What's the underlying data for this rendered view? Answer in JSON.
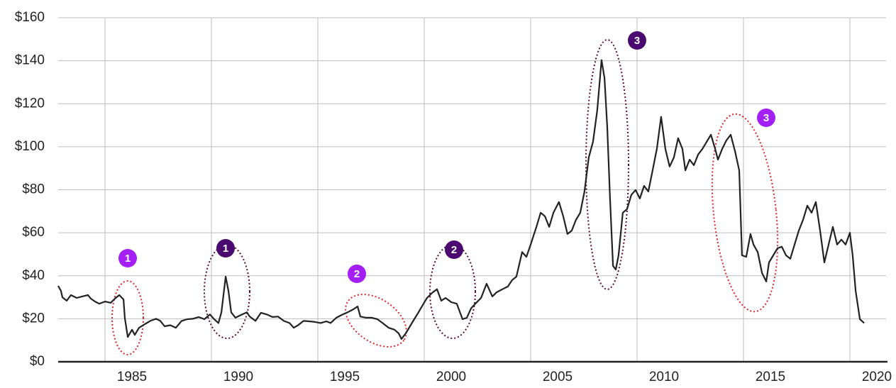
{
  "chart_data": {
    "type": "line",
    "xlim": [
      1982.8,
      2021.7
    ],
    "xticks": [
      1985,
      1990,
      1995,
      2000,
      2005,
      2010,
      2015,
      2020
    ],
    "ylim": [
      0,
      160
    ],
    "yticks": [
      {
        "value": 0,
        "label": "$0"
      },
      {
        "value": 20,
        "label": "$20"
      },
      {
        "value": 40,
        "label": "$40"
      },
      {
        "value": 60,
        "label": "$60"
      },
      {
        "value": 80,
        "label": "$80"
      },
      {
        "value": 100,
        "label": "$100"
      },
      {
        "value": 120,
        "label": "$120"
      },
      {
        "value": 140,
        "label": "$140"
      },
      {
        "value": 160,
        "label": "$160"
      }
    ],
    "grid": true,
    "x": [
      1982.8,
      1982.93,
      1983.0,
      1983.2,
      1983.4,
      1983.67,
      1983.93,
      1984.2,
      1984.33,
      1984.53,
      1984.73,
      1985.0,
      1985.27,
      1985.47,
      1985.67,
      1985.87,
      1985.93,
      1986.07,
      1986.27,
      1986.4,
      1986.6,
      1986.87,
      1987.13,
      1987.4,
      1987.6,
      1987.8,
      1988.07,
      1988.33,
      1988.6,
      1988.87,
      1989.13,
      1989.4,
      1989.67,
      1989.93,
      1990.13,
      1990.33,
      1990.47,
      1990.67,
      1990.8,
      1990.93,
      1991.13,
      1991.4,
      1991.67,
      1991.8,
      1992.07,
      1992.33,
      1992.6,
      1992.87,
      1993.13,
      1993.4,
      1993.67,
      1993.87,
      1994.07,
      1994.33,
      1994.6,
      1994.87,
      1995.13,
      1995.4,
      1995.6,
      1995.87,
      1996.13,
      1996.4,
      1996.67,
      1996.87,
      1997.0,
      1997.27,
      1997.53,
      1997.8,
      1998.07,
      1998.33,
      1998.6,
      1998.8,
      1998.93,
      1999.13,
      1999.33,
      1999.53,
      1999.73,
      1999.93,
      2000.13,
      2000.4,
      2000.6,
      2000.8,
      2001.0,
      2001.27,
      2001.53,
      2001.8,
      2002.0,
      2002.2,
      2002.4,
      2002.67,
      2002.93,
      2003.2,
      2003.4,
      2003.67,
      2003.93,
      2004.13,
      2004.33,
      2004.6,
      2004.8,
      2005.0,
      2005.27,
      2005.47,
      2005.67,
      2005.87,
      2006.07,
      2006.33,
      2006.53,
      2006.73,
      2006.93,
      2007.13,
      2007.33,
      2007.53,
      2007.73,
      2007.93,
      2008.13,
      2008.33,
      2008.47,
      2008.6,
      2008.73,
      2008.87,
      2009.0,
      2009.13,
      2009.33,
      2009.53,
      2009.73,
      2009.93,
      2010.13,
      2010.33,
      2010.53,
      2010.73,
      2010.93,
      2011.13,
      2011.33,
      2011.53,
      2011.73,
      2011.93,
      2012.13,
      2012.27,
      2012.47,
      2012.67,
      2012.87,
      2013.07,
      2013.27,
      2013.47,
      2013.67,
      2013.8,
      2014.0,
      2014.2,
      2014.4,
      2014.6,
      2014.8,
      2014.93,
      2015.13,
      2015.33,
      2015.47,
      2015.67,
      2015.87,
      2016.07,
      2016.2,
      2016.4,
      2016.6,
      2016.8,
      2017.0,
      2017.2,
      2017.4,
      2017.6,
      2017.8,
      2018.0,
      2018.2,
      2018.4,
      2018.6,
      2018.8,
      2019.0,
      2019.2,
      2019.4,
      2019.6,
      2019.8,
      2020.0,
      2020.13,
      2020.27,
      2020.47,
      2020.67
    ],
    "series": [
      {
        "color": "#222222",
        "values": [
          35.3,
          33,
          30,
          28.4,
          31,
          29.7,
          30.4,
          31,
          29.4,
          28,
          27,
          28,
          27.4,
          29.4,
          31,
          29,
          20.5,
          11.5,
          14.9,
          12.5,
          15.8,
          17.5,
          19,
          20,
          19,
          16.5,
          17,
          15.8,
          19,
          19.8,
          20,
          20.8,
          19.8,
          22,
          19.8,
          18,
          23,
          39.6,
          33,
          23,
          20.5,
          21.8,
          23,
          21,
          19,
          22.8,
          22,
          20.8,
          21,
          19,
          18,
          15.8,
          17,
          19,
          18.8,
          18.5,
          18,
          18.8,
          18,
          20.5,
          21.8,
          23,
          24.4,
          25.7,
          21,
          20.5,
          20.5,
          19.8,
          17.8,
          15.8,
          14.9,
          13.2,
          10.6,
          13.2,
          16.5,
          19.8,
          23,
          26.4,
          29.7,
          32.3,
          33.7,
          28.4,
          29.7,
          27.7,
          27,
          19.8,
          20.5,
          24.8,
          27,
          29.7,
          36.3,
          30.4,
          32.3,
          33.7,
          35,
          38,
          39.6,
          51,
          48.8,
          54.5,
          62.7,
          69.3,
          67.7,
          62.7,
          69.3,
          74.3,
          67.7,
          59.4,
          61,
          66,
          69.3,
          79.2,
          95,
          102.3,
          117,
          140.3,
          132,
          109,
          75.9,
          44.6,
          42.9,
          49.5,
          69.3,
          71,
          77.6,
          79.9,
          75.9,
          81.8,
          79.2,
          89,
          99,
          113.9,
          99,
          90.8,
          95,
          104,
          99,
          89,
          94,
          91.4,
          96.4,
          99,
          102.3,
          105.6,
          99,
          94,
          99,
          103,
          105.6,
          98,
          89,
          49.5,
          48.8,
          59.4,
          54.5,
          51,
          41.3,
          37.3,
          46.2,
          49.5,
          52.8,
          53.5,
          49.5,
          47.9,
          54.5,
          61,
          66,
          72.6,
          69.3,
          74.3,
          61,
          46.2,
          54.5,
          62.7,
          54.5,
          56.8,
          54.5,
          60,
          49.5,
          33,
          19.8,
          18
        ]
      }
    ],
    "annotations": [
      {
        "label": "1",
        "color": "#a31ff5"
      },
      {
        "label": "1",
        "color": "#4b0a70"
      },
      {
        "label": "2",
        "color": "#a31ff5"
      },
      {
        "label": "2",
        "color": "#4b0a70"
      },
      {
        "label": "3",
        "color": "#4b0a70"
      },
      {
        "label": "3",
        "color": "#a31ff5"
      }
    ]
  }
}
